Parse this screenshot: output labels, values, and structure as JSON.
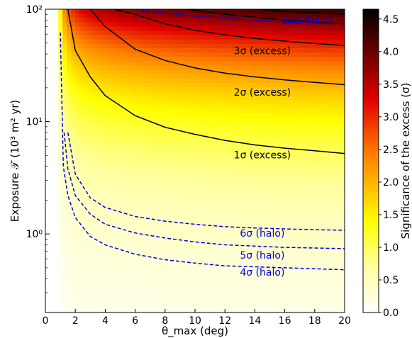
{
  "chart_data": {
    "type": "heatmap",
    "xlabel": "θ_max (deg)",
    "ylabel": "Exposure 𝒯 (10³ m² yr)",
    "colorbar_label": "Significance of the excess (σ)",
    "xlim": [
      0,
      20
    ],
    "ylim": [
      0.2,
      100
    ],
    "yscale": "log",
    "xticks": [
      0,
      2,
      4,
      6,
      8,
      10,
      12,
      14,
      16,
      18,
      20
    ],
    "yticks": [
      {
        "value": 1,
        "label": "10⁰"
      },
      {
        "value": 10,
        "label": "10¹"
      },
      {
        "value": 100,
        "label": "10²"
      }
    ],
    "colorbar_ticks": [
      0.0,
      0.5,
      1.0,
      1.5,
      2.0,
      2.5,
      3.0,
      3.5,
      4.0,
      4.5
    ],
    "colorbar_range": [
      0,
      4.65
    ],
    "colormap": [
      "#ffffff",
      "#ffffa0",
      "#ffff00",
      "#ff8000",
      "#e00000",
      "#5a0000",
      "#000000"
    ],
    "excess_contours": {
      "color": "#000000",
      "style": "solid",
      "lines": [
        {
          "label": "1σ (excess)",
          "level": 1,
          "points": [
            [
              1.5,
              100
            ],
            [
              2,
              43
            ],
            [
              3,
              25
            ],
            [
              4,
              17
            ],
            [
              6,
              11.3
            ],
            [
              8,
              8.9
            ],
            [
              10,
              7.7
            ],
            [
              12,
              6.8
            ],
            [
              14,
              6.2
            ],
            [
              16,
              5.8
            ],
            [
              18,
              5.5
            ],
            [
              20,
              5.2
            ]
          ]
        },
        {
          "label": "2σ (excess)",
          "level": 2,
          "points": [
            [
              3.0,
              100
            ],
            [
              4,
              70
            ],
            [
              6,
              44
            ],
            [
              8,
              35
            ],
            [
              10,
              30
            ],
            [
              12,
              27
            ],
            [
              14,
              25
            ],
            [
              16,
              23.5
            ],
            [
              18,
              22.3
            ],
            [
              20,
              21.3
            ]
          ]
        },
        {
          "label": "3σ (excess)",
          "level": 3,
          "points": [
            [
              4.6,
              100
            ],
            [
              6,
              90
            ],
            [
              8,
              74
            ],
            [
              10,
              65
            ],
            [
              12,
              59
            ],
            [
              14,
              55
            ],
            [
              16,
              52
            ],
            [
              18,
              49.5
            ],
            [
              20,
              47.5
            ]
          ]
        },
        {
          "label": "",
          "level": 4,
          "points": [
            [
              9.5,
              100
            ],
            [
              12,
              90
            ],
            [
              14,
              85
            ],
            [
              16,
              80
            ],
            [
              18,
              77
            ],
            [
              20,
              74
            ]
          ]
        },
        {
          "label": "",
          "level": 4.5,
          "points": [
            [
              14.3,
              100
            ],
            [
              16,
              96
            ],
            [
              18,
              93
            ],
            [
              20,
              90
            ]
          ]
        }
      ]
    },
    "halo_contours": {
      "color": "#0000e0",
      "style": "dashed",
      "lines": [
        {
          "label": "4σ (halo)",
          "level": 4,
          "points": [
            [
              1.0,
              62
            ],
            [
              1.2,
              4
            ],
            [
              1.5,
              2.2
            ],
            [
              2,
              1.4
            ],
            [
              3,
              0.95
            ],
            [
              4,
              0.8
            ],
            [
              6,
              0.66
            ],
            [
              8,
              0.59
            ],
            [
              10,
              0.55
            ],
            [
              12,
              0.52
            ],
            [
              14,
              0.51
            ],
            [
              16,
              0.5
            ],
            [
              18,
              0.49
            ],
            [
              20,
              0.48
            ]
          ]
        },
        {
          "label": "5σ (halo)",
          "level": 5,
          "points": [
            [
              1.25,
              8
            ],
            [
              1.5,
              3.8
            ],
            [
              2,
              2.2
            ],
            [
              3,
              1.5
            ],
            [
              4,
              1.22
            ],
            [
              6,
              1.02
            ],
            [
              8,
              0.92
            ],
            [
              10,
              0.85
            ],
            [
              12,
              0.8
            ],
            [
              14,
              0.78
            ],
            [
              16,
              0.76
            ],
            [
              18,
              0.75
            ],
            [
              20,
              0.74
            ]
          ]
        },
        {
          "label": "6σ (halo)",
          "level": 6,
          "points": [
            [
              1.5,
              8
            ],
            [
              2,
              3.4
            ],
            [
              3,
              2.1
            ],
            [
              4,
              1.72
            ],
            [
              6,
              1.43
            ],
            [
              8,
              1.3
            ],
            [
              10,
              1.22
            ],
            [
              12,
              1.16
            ],
            [
              14,
              1.13
            ],
            [
              16,
              1.11
            ],
            [
              18,
              1.09
            ],
            [
              20,
              1.08
            ]
          ]
        },
        {
          "label": "50σ (halo)",
          "level": 50,
          "points": [
            [
              6,
              100
            ],
            [
              8,
              92
            ],
            [
              10,
              87
            ],
            [
              12,
              83
            ],
            [
              14,
              80
            ],
            [
              16,
              77
            ],
            [
              18,
              75.5
            ],
            [
              20,
              74
            ]
          ]
        }
      ]
    },
    "contour_labels": [
      {
        "text": "3σ (excess)",
        "x": 14.5,
        "y": 42,
        "color": "#000000"
      },
      {
        "text": "2σ (excess)",
        "x": 14.5,
        "y": 18,
        "color": "#000000"
      },
      {
        "text": "1σ (excess)",
        "x": 14.5,
        "y": 5.0,
        "color": "#000000"
      },
      {
        "text": "6σ (halo)",
        "x": 14.5,
        "y": 1.0,
        "color": "#0000e0"
      },
      {
        "text": "5σ (halo)",
        "x": 14.5,
        "y": 0.64,
        "color": "#0000e0"
      },
      {
        "text": "4σ (halo)",
        "x": 14.5,
        "y": 0.45,
        "color": "#0000e0"
      },
      {
        "text": "50σ (halo)",
        "x": 17.5,
        "y": 78,
        "color": "#0000e0"
      }
    ]
  }
}
